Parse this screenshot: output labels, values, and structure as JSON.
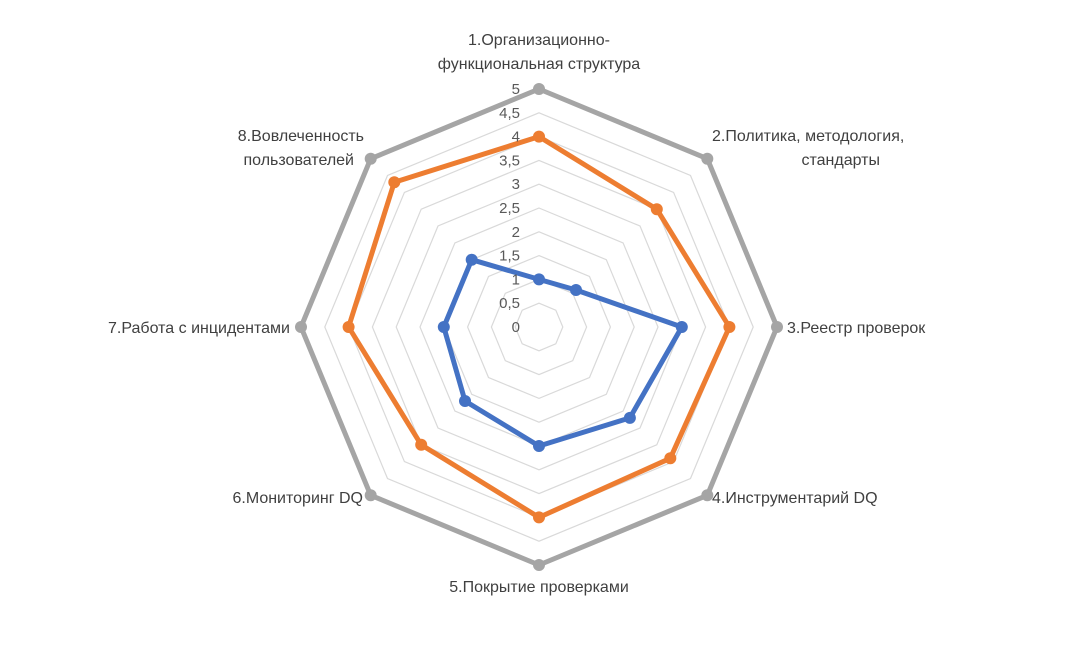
{
  "chart_data": {
    "type": "radar",
    "title": "",
    "categories": [
      [
        "1.Организационно-",
        "функциональная структура"
      ],
      [
        "2.Политика, методология,",
        "стандарты"
      ],
      [
        "3.Реестр проверок"
      ],
      [
        "4.Инструментарий DQ"
      ],
      [
        "5.Покрытие проверками"
      ],
      [
        "6.Мониторинг DQ"
      ],
      [
        "7.Работа с инцидентами"
      ],
      [
        "8.Вовлеченность",
        "пользователей"
      ]
    ],
    "ticks": [
      "0",
      "0,5",
      "1",
      "1,5",
      "2",
      "2,5",
      "3",
      "3,5",
      "4",
      "4,5",
      "5"
    ],
    "rmax": 5,
    "grid": true,
    "series": [
      {
        "values": [
          5,
          5,
          5,
          5,
          5,
          5,
          5,
          5
        ],
        "color": "#A5A5A5"
      },
      {
        "values": [
          4,
          3.5,
          4,
          3.9,
          4,
          3.5,
          4,
          4.3
        ],
        "color": "#ED7D31"
      },
      {
        "values": [
          1,
          1.1,
          3,
          2.7,
          2.5,
          2.2,
          2,
          2
        ],
        "color": "#4472C4"
      }
    ]
  }
}
